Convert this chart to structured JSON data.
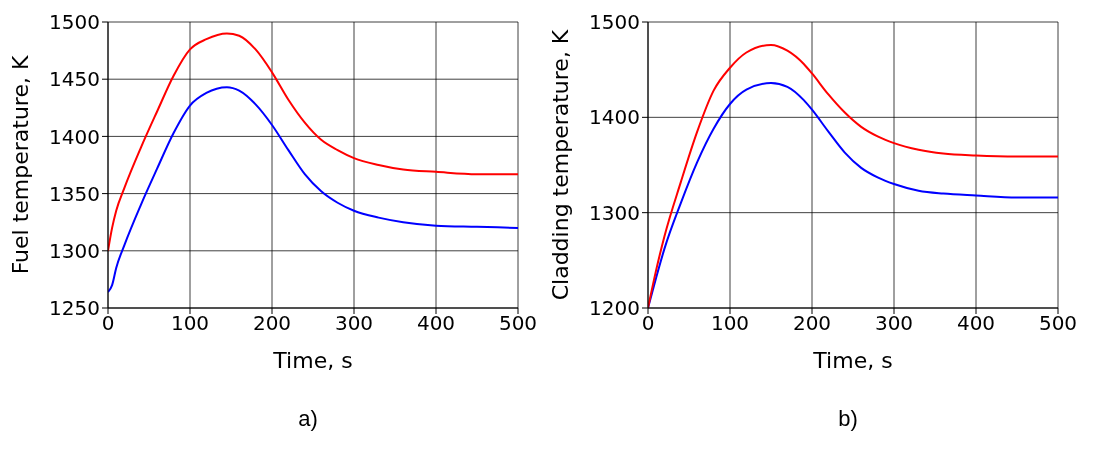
{
  "chart_data": [
    {
      "type": "line",
      "xlabel": "Time, s",
      "ylabel": "Fuel temperature, K",
      "annotations": [
        "a)"
      ],
      "xlim": [
        0,
        500
      ],
      "xticks": [
        0,
        100,
        200,
        300,
        400,
        500
      ],
      "ylim": [
        1250,
        1500
      ],
      "yticks": [
        1250,
        1300,
        1350,
        1400,
        1450,
        1500
      ],
      "grid": true,
      "line_style": "solid",
      "series": [
        {
          "color": "#0000ff",
          "x": [
            0,
            5,
            10,
            20,
            40,
            60,
            80,
            100,
            120,
            145,
            160,
            180,
            200,
            220,
            240,
            260,
            280,
            300,
            330,
            360,
            400,
            450,
            500
          ],
          "values": [
            1264,
            1270,
            1285,
            1305,
            1340,
            1372,
            1403,
            1427,
            1438,
            1443,
            1440,
            1428,
            1410,
            1388,
            1367,
            1352,
            1342,
            1335,
            1329,
            1325,
            1322,
            1321,
            1320
          ]
        },
        {
          "color": "#ff0000",
          "x": [
            0,
            5,
            10,
            20,
            40,
            60,
            80,
            100,
            120,
            145,
            160,
            180,
            200,
            220,
            240,
            260,
            280,
            300,
            330,
            360,
            400,
            450,
            500
          ],
          "values": [
            1300,
            1320,
            1335,
            1355,
            1390,
            1422,
            1453,
            1476,
            1485,
            1490,
            1488,
            1476,
            1456,
            1432,
            1412,
            1397,
            1388,
            1381,
            1375,
            1371,
            1369,
            1367,
            1367
          ]
        }
      ]
    },
    {
      "type": "line",
      "xlabel": "Time, s",
      "ylabel": "Cladding temperature, K",
      "annotations": [
        "b)"
      ],
      "xlim": [
        0,
        500
      ],
      "xticks": [
        0,
        100,
        200,
        300,
        400,
        500
      ],
      "ylim": [
        1200,
        1500
      ],
      "yticks": [
        1200,
        1300,
        1400,
        1500
      ],
      "grid": true,
      "line_style": "solid",
      "series": [
        {
          "color": "#0000ff",
          "x": [
            0,
            10,
            20,
            40,
            60,
            80,
            100,
            120,
            150,
            170,
            190,
            200,
            220,
            240,
            260,
            280,
            300,
            330,
            360,
            400,
            450,
            500
          ],
          "values": [
            1200,
            1232,
            1262,
            1310,
            1353,
            1388,
            1414,
            1429,
            1436,
            1432,
            1418,
            1408,
            1385,
            1363,
            1347,
            1337,
            1330,
            1323,
            1320,
            1318,
            1316,
            1316
          ]
        },
        {
          "color": "#ff0000",
          "x": [
            0,
            10,
            20,
            40,
            60,
            80,
            100,
            120,
            150,
            170,
            190,
            200,
            220,
            240,
            260,
            280,
            300,
            330,
            360,
            400,
            450,
            500
          ],
          "values": [
            1200,
            1240,
            1275,
            1332,
            1385,
            1428,
            1452,
            1468,
            1476,
            1470,
            1456,
            1446,
            1424,
            1405,
            1390,
            1380,
            1373,
            1366,
            1362,
            1360,
            1359,
            1359
          ]
        }
      ]
    }
  ]
}
